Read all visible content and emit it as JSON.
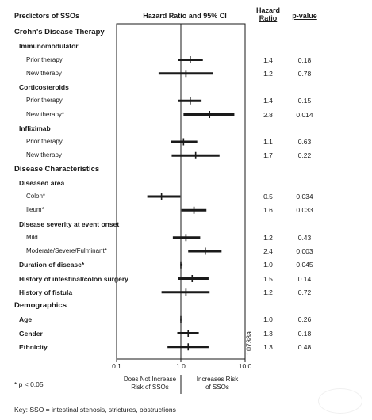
{
  "header": {
    "predictors": "Predictors of SSOs",
    "hr_ci": "Hazard Ratio and 95% CI",
    "hazard_ratio_line1": "Hazard",
    "hazard_ratio_line2": "Ratio",
    "p_value": "p-value"
  },
  "chart_data": {
    "type": "forest",
    "title": "",
    "x_scale": "log",
    "xlim": [
      0.1,
      10.0
    ],
    "x_ticks": [
      "0.1",
      "1.0",
      "10.0"
    ],
    "reference_line": 1.0,
    "rows": [
      {
        "label": "Crohn's Disease Therapy",
        "level": 0
      },
      {
        "label": "Immunomodulator",
        "level": 1
      },
      {
        "label": "Prior therapy",
        "level": 2,
        "hr": 1.4,
        "lo": 0.9,
        "hi": 2.2,
        "hr_text": "1.4",
        "p": "0.18"
      },
      {
        "label": "New therapy",
        "level": 2,
        "hr": 1.2,
        "lo": 0.45,
        "hi": 3.2,
        "hr_text": "1.2",
        "p": "0.78"
      },
      {
        "label": "Corticosteroids",
        "level": 1
      },
      {
        "label": "Prior therapy",
        "level": 2,
        "hr": 1.4,
        "lo": 0.9,
        "hi": 2.1,
        "hr_text": "1.4",
        "p": "0.15"
      },
      {
        "label": "New therapy*",
        "level": 2,
        "hr": 2.8,
        "lo": 1.1,
        "hi": 6.8,
        "hr_text": "2.8",
        "p": "0.014"
      },
      {
        "label": "Infliximab",
        "level": 1
      },
      {
        "label": "Prior therapy",
        "level": 2,
        "hr": 1.1,
        "lo": 0.7,
        "hi": 1.8,
        "hr_text": "1.1",
        "p": "0.63"
      },
      {
        "label": "New therapy",
        "level": 2,
        "hr": 1.7,
        "lo": 0.72,
        "hi": 4.0,
        "hr_text": "1.7",
        "p": "0.22"
      },
      {
        "label": "Disease Characteristics",
        "level": 0
      },
      {
        "label": "Diseased area",
        "level": 1
      },
      {
        "label": "Colon*",
        "level": 2,
        "hr": 0.5,
        "lo": 0.3,
        "hi": 0.98,
        "hr_text": "0.5",
        "p": "0.034"
      },
      {
        "label": "Ileum*",
        "level": 2,
        "hr": 1.6,
        "lo": 1.02,
        "hi": 2.5,
        "hr_text": "1.6",
        "p": "0.033"
      },
      {
        "label": "Disease severity at event onset",
        "level": 1
      },
      {
        "label": "Mild",
        "level": 2,
        "hr": 1.2,
        "lo": 0.75,
        "hi": 2.0,
        "hr_text": "1.2",
        "p": "0.43"
      },
      {
        "label": "Moderate/Severe/Fulminant*",
        "level": 2,
        "hr": 2.4,
        "lo": 1.3,
        "hi": 4.3,
        "hr_text": "2.4",
        "p": "0.003"
      },
      {
        "label": "Duration of disease*",
        "level": 1,
        "hr": 1.0,
        "lo": 0.98,
        "hi": 1.06,
        "hr_text": "1.0",
        "p": "0.045"
      },
      {
        "label": "History of intestinal/colon surgery",
        "level": 1,
        "hr": 1.5,
        "lo": 0.9,
        "hi": 2.7,
        "hr_text": "1.5",
        "p": "0.14"
      },
      {
        "label": "History of fistula",
        "level": 1,
        "hr": 1.2,
        "lo": 0.5,
        "hi": 2.8,
        "hr_text": "1.2",
        "p": "0.72"
      },
      {
        "label": "Demographics",
        "level": 0
      },
      {
        "label": "Age",
        "level": 1,
        "hr": 1.0,
        "lo": 0.98,
        "hi": 1.02,
        "hr_text": "1.0",
        "p": "0.26"
      },
      {
        "label": "Gender",
        "level": 1,
        "hr": 1.3,
        "lo": 0.88,
        "hi": 1.9,
        "hr_text": "1.3",
        "p": "0.18"
      },
      {
        "label": "Ethnicity",
        "level": 1,
        "hr": 1.3,
        "lo": 0.62,
        "hi": 2.7,
        "hr_text": "1.3",
        "p": "0.48"
      }
    ]
  },
  "interpretation": {
    "left_line1": "Does Not Increase",
    "left_line2": "Risk of SSOs",
    "right_line1": "Increases Risk",
    "right_line2": "of SSOs"
  },
  "footnote": "* p < 0.05",
  "figure_code": "10738a",
  "key": "Key: SSO = intestinal stenosis, strictures, obstructions"
}
